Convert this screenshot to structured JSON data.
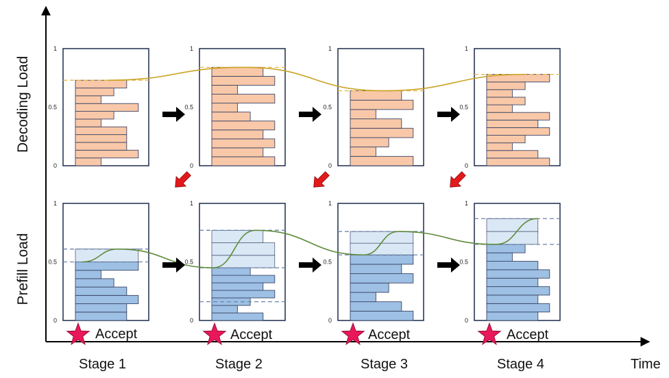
{
  "axes": {
    "y_top_label": "Decoding Load",
    "y_bottom_label": "Prefill Load",
    "x_label": "Time"
  },
  "ticks": [
    "1",
    "0.5",
    "0"
  ],
  "stages": [
    {
      "label": "Stage 1",
      "accept_label": "Accept",
      "decode_bars": [
        0.22,
        0.54,
        0.44,
        0.44,
        0.44,
        0.22,
        0.33,
        0.54,
        0.22,
        0.33,
        0.44
      ],
      "decode_level": 0.73,
      "prefill_solid": [
        0.44,
        0.44,
        0.54,
        0.44,
        0.33,
        0.22,
        0.54
      ],
      "prefill_light": [
        0.54
      ],
      "prefill_dashes": [
        0.61,
        0.5
      ]
    },
    {
      "label": "Stage 2",
      "accept_label": "Accept",
      "decode_bars": [
        0.54,
        0.44,
        0.54,
        0.44,
        0.54,
        0.33,
        0.22,
        0.54,
        0.22,
        0.54,
        0.44
      ],
      "decode_level": 0.84,
      "prefill_solid": [
        0.44,
        0.22,
        0.33,
        0.54,
        0.44,
        0.54,
        0.33
      ],
      "prefill_light": [
        0.54,
        0.54,
        0.44
      ],
      "prefill_dashes": [
        0.77,
        0.45,
        0.16
      ]
    },
    {
      "label": "Stage 3",
      "accept_label": "Accept",
      "decode_bars": [
        0.54,
        0.22,
        0.33,
        0.54,
        0.44,
        0.22,
        0.54,
        0.44
      ],
      "decode_level": 0.64,
      "prefill_solid": [
        0.54,
        0.44,
        0.22,
        0.33,
        0.54,
        0.44,
        0.54
      ],
      "prefill_light": [
        0.54,
        0.54
      ],
      "prefill_dashes": [
        0.76,
        0.56
      ]
    },
    {
      "label": "Stage 4",
      "accept_label": "Accept",
      "decode_bars": [
        0.54,
        0.44,
        0.22,
        0.33,
        0.54,
        0.44,
        0.54,
        0.22,
        0.33,
        0.22,
        0.33,
        0.54
      ],
      "decode_level": 0.78,
      "prefill_solid": [
        0.44,
        0.54,
        0.44,
        0.54,
        0.44,
        0.54,
        0.44,
        0.22,
        0.33
      ],
      "prefill_light": [
        0.44,
        0.44
      ],
      "prefill_dashes": [
        0.87,
        0.65
      ]
    }
  ],
  "colors": {
    "decode_fill": "#f9c8a8",
    "prefill_fill": "#9dc0e4",
    "prefill_light_fill": "#dae8f5",
    "bar_stroke": "#3b4566",
    "panel_stroke": "#1b2a4a",
    "decode_curve": "#c9a323",
    "prefill_curve": "#5f8a3a",
    "decode_dash": "#e6b84a",
    "prefill_dash": "#6d83a8",
    "arrow_black": "#000000",
    "arrow_red": "#e3191b",
    "star": "#e8185a"
  }
}
